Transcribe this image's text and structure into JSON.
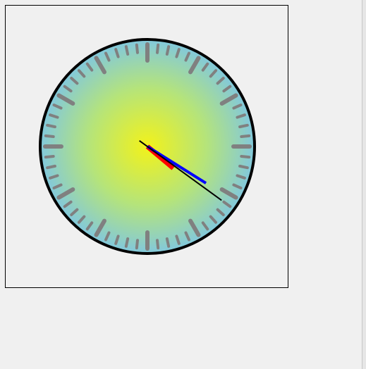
{
  "clock": {
    "time": {
      "hours": 4,
      "minutes": 20,
      "seconds": 21
    },
    "colors": {
      "face_center": "#f2f21a",
      "face_mid": "#b5e47a",
      "face_edge": "#82c8dc",
      "rim": "#000000",
      "tick": "#808080",
      "hour_hand": "#ff0000",
      "minute_hand": "#0000ff",
      "second_hand": "#000000",
      "background": "#f0f0f0"
    }
  }
}
